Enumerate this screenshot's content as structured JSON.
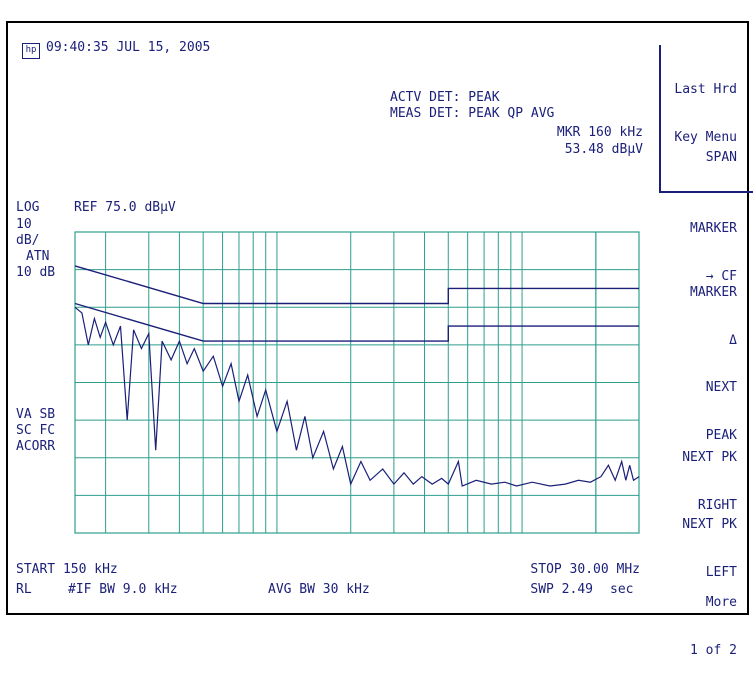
{
  "header": {
    "logo_text": "hp",
    "timestamp": "09:40:35 JUL 15, 2005",
    "actv_det": "ACTV DET: PEAK",
    "meas_det": "MEAS DET: PEAK QP AVG",
    "marker_freq": "MKR 160 kHz",
    "marker_level": "53.48 dBμV"
  },
  "left_panel": {
    "scale_mode": "LOG",
    "ref_level": "REF 75.0 dBμV",
    "scale_value": "10",
    "scale_unit": "dB/",
    "atn_label": "ATN",
    "atn_value": "10 dB",
    "status_1": "VA SB",
    "status_2": "SC FC",
    "status_3": "ACORR"
  },
  "footer": {
    "start": "START 150 kHz",
    "stop": "STOP 30.00 MHz",
    "rl": "RL",
    "if_bw": "#IF BW 9.0 kHz",
    "avg_bw": "AVG BW 30 kHz",
    "swp_label": "SWP 2.49",
    "swp_unit": "sec"
  },
  "softkeys": [
    {
      "line1": "Last Hrd",
      "line2": "Key Menu"
    },
    {
      "line1": "SPAN",
      "line2": ""
    },
    {
      "line1": "MARKER",
      "line2": "→ CF"
    },
    {
      "line1": "MARKER",
      "line2": "Δ"
    },
    {
      "line1": "NEXT",
      "line2": "PEAK"
    },
    {
      "line1": "NEXT PK",
      "line2": "RIGHT"
    },
    {
      "line1": "NEXT PK",
      "line2": "LEFT"
    },
    {
      "line1": "More",
      "line2": "1 of 2"
    }
  ],
  "colors": {
    "trace": "#1a1f78",
    "grid": "#2e9e8e",
    "text": "#1a1f78"
  },
  "chart_data": {
    "type": "line",
    "x_scale": "log",
    "x_start_hz": 150000,
    "x_stop_hz": 30000000,
    "ref_level_dbuv": 75.0,
    "scale_db_per_div": 10,
    "y_range_dbuv": [
      -5,
      75
    ],
    "grid": true,
    "series": [
      {
        "role": "limit-upper",
        "points": [
          [
            150000,
            66
          ],
          [
            500000,
            56
          ],
          [
            5000000,
            56
          ],
          [
            5000000,
            60
          ],
          [
            30000000,
            60
          ]
        ]
      },
      {
        "role": "limit-lower",
        "points": [
          [
            150000,
            56
          ],
          [
            500000,
            46
          ],
          [
            5000000,
            46
          ],
          [
            5000000,
            50
          ],
          [
            30000000,
            50
          ]
        ]
      },
      {
        "role": "trace",
        "points": [
          [
            150000,
            55
          ],
          [
            160000,
            53.5
          ],
          [
            170000,
            45
          ],
          [
            180000,
            52
          ],
          [
            190000,
            47
          ],
          [
            200000,
            51
          ],
          [
            215000,
            45
          ],
          [
            230000,
            50
          ],
          [
            245000,
            25
          ],
          [
            260000,
            49
          ],
          [
            280000,
            44
          ],
          [
            300000,
            48
          ],
          [
            320000,
            17
          ],
          [
            340000,
            46
          ],
          [
            370000,
            41
          ],
          [
            400000,
            46
          ],
          [
            430000,
            40
          ],
          [
            460000,
            44
          ],
          [
            500000,
            38
          ],
          [
            550000,
            42
          ],
          [
            600000,
            34
          ],
          [
            650000,
            40
          ],
          [
            700000,
            30
          ],
          [
            760000,
            37
          ],
          [
            830000,
            26
          ],
          [
            900000,
            33
          ],
          [
            1000000,
            22
          ],
          [
            1100000,
            30
          ],
          [
            1200000,
            17
          ],
          [
            1300000,
            26
          ],
          [
            1400000,
            15
          ],
          [
            1550000,
            22
          ],
          [
            1700000,
            12
          ],
          [
            1850000,
            18
          ],
          [
            2000000,
            8
          ],
          [
            2200000,
            14
          ],
          [
            2400000,
            9
          ],
          [
            2700000,
            12
          ],
          [
            3000000,
            8
          ],
          [
            3300000,
            11
          ],
          [
            3600000,
            8
          ],
          [
            3900000,
            10
          ],
          [
            4300000,
            8
          ],
          [
            4700000,
            9.5
          ],
          [
            5000000,
            8
          ],
          [
            5500000,
            14
          ],
          [
            5700000,
            7.5
          ],
          [
            6500000,
            9
          ],
          [
            7500000,
            8
          ],
          [
            8500000,
            8.5
          ],
          [
            9500000,
            7.5
          ],
          [
            11000000,
            8.5
          ],
          [
            13000000,
            7.5
          ],
          [
            15000000,
            8
          ],
          [
            17000000,
            9
          ],
          [
            19000000,
            8.5
          ],
          [
            21000000,
            10
          ],
          [
            22500000,
            13
          ],
          [
            24000000,
            9
          ],
          [
            25500000,
            14
          ],
          [
            26500000,
            9
          ],
          [
            27500000,
            13
          ],
          [
            28500000,
            9
          ],
          [
            30000000,
            10
          ]
        ]
      }
    ]
  }
}
